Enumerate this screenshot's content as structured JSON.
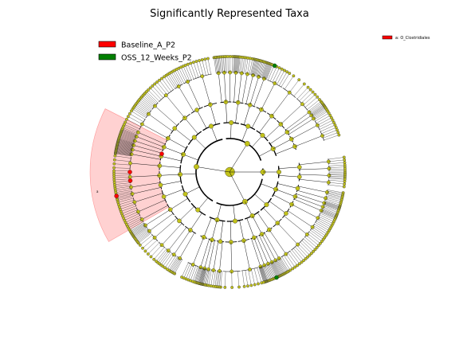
{
  "title": "Significantly Represented Taxa",
  "legend": {
    "items": [
      {
        "label": "Baseline_A_P2",
        "color": "#ff0000"
      },
      {
        "label": "OSS_12_Weeks_P2",
        "color": "#008000"
      }
    ]
  },
  "clade_key": {
    "items": [
      {
        "label": "a: O_Clostridiales",
        "color": "#ff0000"
      }
    ]
  },
  "highlight": {
    "letter": "a",
    "color": "#ff0000"
  },
  "node_color": "#c2c21a"
}
